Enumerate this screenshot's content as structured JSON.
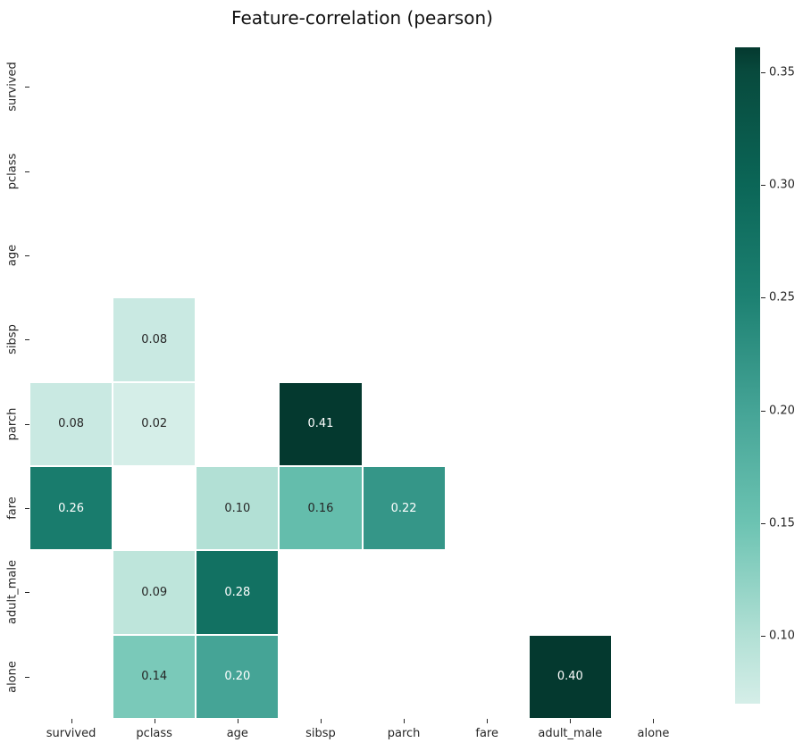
{
  "chart_data": {
    "type": "heatmap",
    "title": "Feature-correlation (pearson)",
    "x_categories": [
      "survived",
      "pclass",
      "age",
      "sibsp",
      "parch",
      "fare",
      "adult_male",
      "alone"
    ],
    "y_categories": [
      "survived",
      "pclass",
      "age",
      "sibsp",
      "parch",
      "fare",
      "adult_male",
      "alone"
    ],
    "cells": [
      {
        "row": "sibsp",
        "col": "pclass",
        "value": 0.08
      },
      {
        "row": "parch",
        "col": "survived",
        "value": 0.08
      },
      {
        "row": "parch",
        "col": "pclass",
        "value": 0.02
      },
      {
        "row": "parch",
        "col": "sibsp",
        "value": 0.41
      },
      {
        "row": "fare",
        "col": "survived",
        "value": 0.26
      },
      {
        "row": "fare",
        "col": "age",
        "value": 0.1
      },
      {
        "row": "fare",
        "col": "sibsp",
        "value": 0.16
      },
      {
        "row": "fare",
        "col": "parch",
        "value": 0.22
      },
      {
        "row": "adult_male",
        "col": "pclass",
        "value": 0.09
      },
      {
        "row": "adult_male",
        "col": "age",
        "value": 0.28
      },
      {
        "row": "alone",
        "col": "pclass",
        "value": 0.14
      },
      {
        "row": "alone",
        "col": "age",
        "value": 0.2
      },
      {
        "row": "alone",
        "col": "adult_male",
        "value": 0.4
      }
    ],
    "colormap_stops": [
      [
        0.07,
        "#d5eee8"
      ],
      [
        0.1,
        "#b2e0d5"
      ],
      [
        0.15,
        "#6cc3b2"
      ],
      [
        0.2,
        "#45a496"
      ],
      [
        0.25,
        "#1d8172"
      ],
      [
        0.3,
        "#0b6657"
      ],
      [
        0.35,
        "#084a3d"
      ],
      [
        0.361,
        "#04392f"
      ]
    ],
    "colorbar": {
      "vmin": 0.07,
      "vmax": 0.361,
      "ticks": [
        0.35,
        0.3,
        0.25,
        0.2,
        0.15,
        0.1
      ]
    },
    "annot_colors": {
      "on_dark": "#ffffff",
      "on_light": "#262626",
      "white_text_threshold": 0.18
    },
    "grid_off": true,
    "legend": "none",
    "mask_note": "only positive lower-triangle correlations are drawn; other cells blank"
  }
}
